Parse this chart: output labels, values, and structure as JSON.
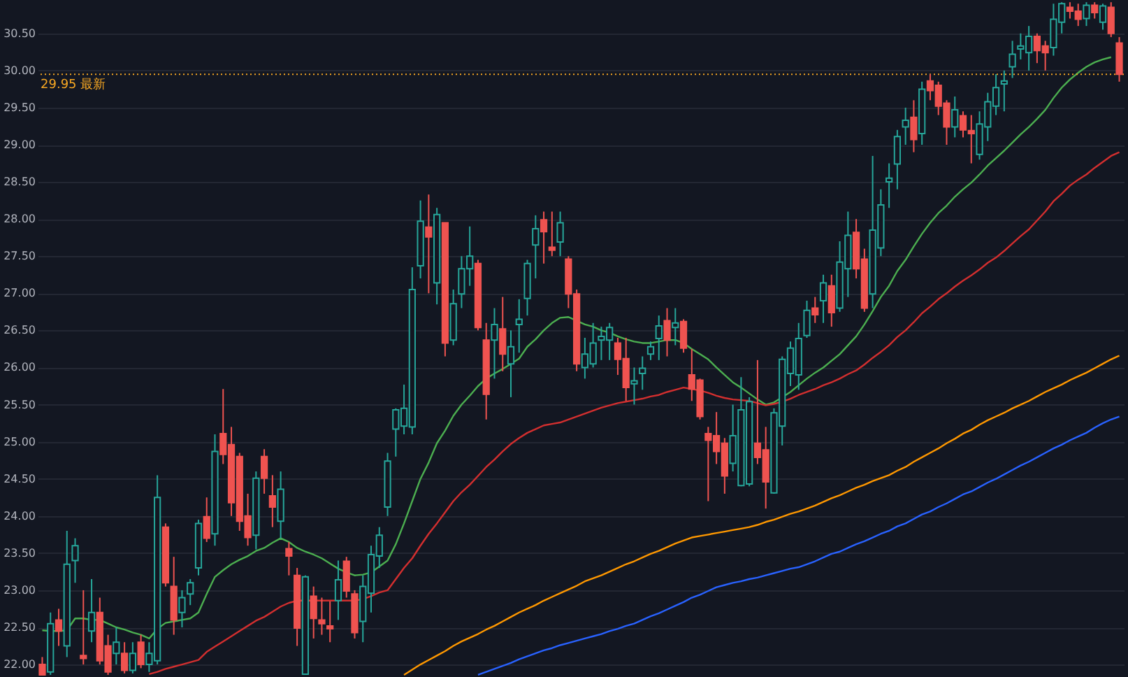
{
  "chart_data": {
    "type": "candlestick",
    "categories": [
      null,
      null,
      null,
      null,
      null,
      null,
      null,
      null,
      null,
      null,
      null,
      null,
      null,
      null,
      null,
      null,
      null,
      null,
      null,
      null,
      null,
      null,
      null,
      null,
      null,
      null,
      null,
      null,
      null,
      null,
      null,
      null,
      null,
      null,
      null,
      null,
      null,
      null,
      null,
      null,
      null,
      null,
      null,
      null,
      null,
      null,
      null,
      null,
      null,
      null,
      null,
      null,
      null,
      null,
      null,
      null,
      null,
      null,
      null,
      null,
      null,
      null,
      null,
      null,
      null,
      null,
      null,
      null,
      null,
      null,
      null,
      null,
      null,
      null,
      null,
      null,
      null,
      null,
      null,
      null,
      null,
      null,
      null,
      null,
      null,
      null,
      null,
      null,
      null,
      null,
      null,
      null,
      null,
      null,
      null,
      null,
      null,
      null,
      null,
      null,
      null,
      null,
      null,
      null,
      null,
      null,
      null,
      null,
      null,
      null,
      null,
      null,
      null,
      null,
      null,
      null,
      null,
      null,
      null,
      null,
      null,
      null,
      null,
      null,
      null,
      null,
      null,
      null,
      null,
      null,
      null,
      null
    ],
    "ohlc": [
      [
        22.0,
        22.1,
        21.85,
        21.86
      ],
      [
        21.9,
        22.7,
        21.86,
        22.55
      ],
      [
        22.6,
        22.75,
        22.25,
        22.45
      ],
      [
        22.25,
        23.8,
        22.1,
        23.35
      ],
      [
        23.4,
        23.7,
        23.1,
        23.6
      ],
      [
        22.12,
        23.0,
        22.0,
        22.08
      ],
      [
        22.45,
        23.15,
        22.3,
        22.7
      ],
      [
        22.7,
        22.9,
        22.0,
        22.05
      ],
      [
        22.25,
        22.4,
        21.86,
        21.9
      ],
      [
        22.15,
        22.5,
        22.0,
        22.3
      ],
      [
        22.15,
        22.3,
        21.88,
        21.92
      ],
      [
        21.92,
        22.3,
        21.88,
        22.15
      ],
      [
        22.3,
        22.4,
        21.95,
        22.0
      ],
      [
        22.0,
        22.3,
        21.9,
        22.15
      ],
      [
        22.05,
        24.55,
        22.0,
        24.25
      ],
      [
        23.85,
        23.9,
        23.05,
        23.1
      ],
      [
        23.05,
        23.45,
        22.4,
        22.6
      ],
      [
        22.7,
        23.0,
        22.5,
        22.9
      ],
      [
        22.95,
        23.15,
        22.8,
        23.1
      ],
      [
        23.3,
        23.95,
        23.2,
        23.9
      ],
      [
        23.99,
        24.25,
        23.65,
        23.7
      ],
      [
        23.76,
        25.1,
        23.6,
        24.87
      ],
      [
        25.11,
        25.71,
        24.7,
        24.83
      ],
      [
        24.96,
        25.2,
        24.0,
        24.18
      ],
      [
        24.8,
        24.85,
        23.8,
        23.93
      ],
      [
        24.0,
        24.3,
        23.6,
        23.71
      ],
      [
        23.74,
        24.6,
        23.55,
        24.51
      ],
      [
        24.8,
        24.9,
        24.3,
        24.51
      ],
      [
        24.27,
        24.55,
        23.85,
        24.12
      ],
      [
        23.93,
        24.6,
        23.7,
        24.36
      ],
      [
        23.56,
        23.65,
        23.2,
        23.46
      ],
      [
        23.2,
        23.3,
        22.25,
        22.49
      ],
      [
        21.87,
        23.2,
        21.86,
        23.18
      ],
      [
        22.92,
        23.05,
        22.35,
        22.62
      ],
      [
        22.6,
        22.9,
        22.4,
        22.55
      ],
      [
        22.52,
        22.85,
        22.3,
        22.48
      ],
      [
        22.86,
        23.4,
        22.6,
        23.14
      ],
      [
        23.39,
        23.45,
        22.9,
        22.99
      ],
      [
        22.95,
        23.0,
        22.35,
        22.43
      ],
      [
        22.58,
        23.2,
        22.3,
        23.05
      ],
      [
        22.96,
        23.6,
        22.7,
        23.48
      ],
      [
        23.46,
        23.85,
        23.3,
        23.74
      ],
      [
        24.12,
        24.85,
        24.0,
        24.74
      ],
      [
        25.17,
        25.45,
        24.8,
        25.43
      ],
      [
        25.21,
        25.77,
        25.1,
        25.45
      ],
      [
        25.2,
        27.35,
        25.1,
        27.05
      ],
      [
        27.37,
        28.25,
        27.2,
        27.97
      ],
      [
        27.89,
        28.33,
        27.0,
        27.76
      ],
      [
        27.14,
        28.15,
        26.85,
        28.06
      ],
      [
        27.95,
        27.95,
        26.15,
        26.33
      ],
      [
        26.37,
        27.05,
        26.3,
        26.86
      ],
      [
        26.99,
        27.5,
        26.8,
        27.33
      ],
      [
        27.33,
        27.9,
        27.1,
        27.5
      ],
      [
        27.4,
        27.45,
        26.5,
        26.54
      ],
      [
        26.37,
        26.6,
        25.3,
        25.64
      ],
      [
        26.37,
        26.8,
        25.85,
        26.58
      ],
      [
        26.52,
        26.95,
        25.95,
        26.18
      ],
      [
        26.05,
        26.5,
        25.6,
        26.28
      ],
      [
        26.58,
        26.92,
        26.2,
        26.65
      ],
      [
        26.93,
        27.45,
        26.7,
        27.4
      ],
      [
        27.65,
        28.05,
        27.2,
        27.87
      ],
      [
        27.99,
        28.1,
        27.4,
        27.83
      ],
      [
        27.62,
        28.1,
        27.5,
        27.58
      ],
      [
        27.69,
        28.1,
        27.5,
        27.95
      ],
      [
        27.46,
        27.5,
        26.8,
        26.99
      ],
      [
        26.99,
        27.05,
        25.95,
        26.05
      ],
      [
        26.0,
        26.4,
        25.85,
        26.18
      ],
      [
        26.05,
        26.6,
        26.0,
        26.33
      ],
      [
        26.37,
        26.55,
        26.1,
        26.42
      ],
      [
        26.37,
        26.6,
        26.1,
        26.54
      ],
      [
        26.33,
        26.4,
        25.9,
        26.11
      ],
      [
        26.12,
        26.4,
        25.55,
        25.73
      ],
      [
        25.78,
        26.0,
        25.5,
        25.82
      ],
      [
        25.92,
        26.15,
        25.7,
        25.99
      ],
      [
        26.18,
        26.35,
        26.1,
        26.28
      ],
      [
        26.39,
        26.7,
        26.1,
        26.56
      ],
      [
        26.63,
        26.8,
        26.15,
        26.37
      ],
      [
        26.54,
        26.8,
        26.3,
        26.6
      ],
      [
        26.62,
        26.65,
        26.2,
        26.26
      ],
      [
        25.9,
        26.25,
        25.55,
        25.71
      ],
      [
        25.83,
        25.85,
        25.3,
        25.34
      ],
      [
        25.11,
        25.2,
        24.2,
        25.02
      ],
      [
        25.08,
        25.4,
        24.7,
        24.87
      ],
      [
        24.98,
        25.05,
        24.3,
        24.54
      ],
      [
        24.71,
        25.5,
        24.6,
        25.08
      ],
      [
        24.41,
        25.87,
        24.4,
        25.43
      ],
      [
        24.43,
        25.6,
        24.4,
        25.54
      ],
      [
        24.98,
        26.1,
        24.7,
        24.79
      ],
      [
        24.89,
        25.2,
        24.1,
        24.46
      ],
      [
        24.31,
        25.45,
        24.3,
        25.39
      ],
      [
        25.21,
        26.15,
        24.95,
        26.11
      ],
      [
        25.92,
        26.35,
        25.75,
        26.26
      ],
      [
        25.9,
        26.6,
        25.7,
        26.39
      ],
      [
        26.43,
        26.9,
        26.4,
        26.77
      ],
      [
        26.8,
        26.95,
        26.6,
        26.71
      ],
      [
        26.9,
        27.25,
        26.6,
        27.14
      ],
      [
        27.1,
        27.25,
        26.55,
        26.74
      ],
      [
        26.8,
        27.7,
        26.75,
        27.42
      ],
      [
        27.33,
        28.1,
        26.95,
        27.78
      ],
      [
        27.82,
        28.0,
        27.2,
        27.33
      ],
      [
        27.46,
        27.6,
        26.75,
        26.8
      ],
      [
        26.99,
        28.85,
        26.8,
        27.85
      ],
      [
        27.61,
        28.4,
        27.5,
        28.19
      ],
      [
        28.5,
        28.75,
        28.15,
        28.55
      ],
      [
        28.74,
        29.2,
        28.4,
        29.11
      ],
      [
        29.24,
        29.5,
        29.0,
        29.33
      ],
      [
        29.37,
        29.6,
        28.9,
        29.07
      ],
      [
        29.15,
        29.85,
        29.0,
        29.75
      ],
      [
        29.86,
        29.95,
        29.6,
        29.73
      ],
      [
        29.8,
        29.85,
        29.4,
        29.52
      ],
      [
        29.56,
        29.6,
        29.0,
        29.24
      ],
      [
        29.24,
        29.65,
        29.1,
        29.47
      ],
      [
        29.39,
        29.45,
        29.1,
        29.2
      ],
      [
        29.19,
        29.4,
        28.75,
        29.15
      ],
      [
        28.87,
        29.45,
        28.8,
        29.28
      ],
      [
        29.24,
        29.7,
        29.05,
        29.58
      ],
      [
        29.52,
        29.95,
        29.4,
        29.77
      ],
      [
        29.82,
        30.0,
        29.45,
        29.86
      ],
      [
        30.05,
        30.4,
        29.9,
        30.22
      ],
      [
        30.29,
        30.5,
        30.15,
        30.33
      ],
      [
        30.24,
        30.6,
        30.0,
        30.46
      ],
      [
        30.46,
        30.5,
        30.1,
        30.27
      ],
      [
        30.33,
        30.4,
        30.0,
        30.24
      ],
      [
        30.31,
        30.9,
        30.2,
        30.69
      ],
      [
        30.65,
        30.92,
        30.5,
        30.9
      ],
      [
        30.85,
        30.92,
        30.7,
        30.8
      ],
      [
        30.8,
        30.9,
        30.6,
        30.69
      ],
      [
        30.7,
        30.92,
        30.6,
        30.88
      ],
      [
        30.88,
        30.92,
        30.7,
        30.78
      ],
      [
        30.65,
        30.9,
        30.55,
        30.87
      ],
      [
        30.85,
        30.92,
        30.45,
        30.5
      ],
      [
        30.37,
        30.45,
        29.85,
        29.95
      ]
    ],
    "colors": [
      "#ef5350",
      "#26a69a",
      "#ef5350",
      "#26a69a",
      "#26a69a",
      "#ef5350",
      "#26a69a",
      "#ef5350",
      "#ef5350",
      "#26a69a",
      "#ef5350",
      "#26a69a",
      "#ef5350",
      "#26a69a",
      "#26a69a",
      "#ef5350",
      "#ef5350",
      "#26a69a",
      "#26a69a",
      "#26a69a",
      "#ef5350",
      "#26a69a",
      "#ef5350",
      "#ef5350",
      "#ef5350",
      "#ef5350",
      "#26a69a",
      "#ef5350",
      "#ef5350",
      "#26a69a",
      "#ef5350",
      "#ef5350",
      "#26a69a",
      "#ef5350",
      "#ef5350",
      "#ef5350",
      "#26a69a",
      "#ef5350",
      "#ef5350",
      "#26a69a",
      "#26a69a",
      "#26a69a",
      "#26a69a",
      "#26a69a",
      "#26a69a",
      "#26a69a",
      "#26a69a",
      "#ef5350",
      "#26a69a",
      "#ef5350",
      "#26a69a",
      "#26a69a",
      "#26a69a",
      "#ef5350",
      "#ef5350",
      "#26a69a",
      "#ef5350",
      "#26a69a",
      "#26a69a",
      "#26a69a",
      "#26a69a",
      "#ef5350",
      "#ef5350",
      "#26a69a",
      "#ef5350",
      "#ef5350",
      "#26a69a",
      "#26a69a",
      "#26a69a",
      "#26a69a",
      "#ef5350",
      "#ef5350",
      "#26a69a",
      "#26a69a",
      "#26a69a",
      "#26a69a",
      "#ef5350",
      "#26a69a",
      "#ef5350",
      "#ef5350",
      "#ef5350",
      "#ef5350",
      "#ef5350",
      "#ef5350",
      "#26a69a",
      "#26a69a",
      "#26a69a",
      "#ef5350",
      "#ef5350",
      "#26a69a",
      "#26a69a",
      "#26a69a",
      "#26a69a",
      "#26a69a",
      "#ef5350",
      "#26a69a",
      "#ef5350",
      "#26a69a",
      "#26a69a",
      "#ef5350",
      "#ef5350",
      "#26a69a",
      "#26a69a",
      "#26a69a",
      "#26a69a",
      "#26a69a",
      "#ef5350",
      "#26a69a",
      "#ef5350",
      "#ef5350",
      "#ef5350",
      "#26a69a",
      "#ef5350",
      "#ef5350",
      "#26a69a",
      "#26a69a",
      "#26a69a",
      "#26a69a",
      "#26a69a",
      "#26a69a",
      "#26a69a",
      "#ef5350",
      "#ef5350",
      "#26a69a",
      "#26a69a",
      "#ef5350",
      "#ef5350",
      "#26a69a",
      "#ef5350",
      "#26a69a",
      "#ef5350",
      "#ef5350"
    ],
    "series": [
      {
        "type": "line",
        "color": "#4caf50",
        "values": [
          22.46,
          22.45,
          22.45,
          22.46,
          22.62,
          22.62,
          22.6,
          22.6,
          22.55,
          22.5,
          22.47,
          22.43,
          22.4,
          22.35,
          22.48,
          22.56,
          22.58,
          22.6,
          22.62,
          22.7,
          22.95,
          23.18,
          23.27,
          23.35,
          23.41,
          23.46,
          23.53,
          23.57,
          23.64,
          23.7,
          23.65,
          23.57,
          23.52,
          23.48,
          23.43,
          23.36,
          23.29,
          23.24,
          23.2,
          23.21,
          23.24,
          23.32,
          23.4,
          23.62,
          23.9,
          24.2,
          24.5,
          24.72,
          24.98,
          25.15,
          25.35,
          25.5,
          25.62,
          25.75,
          25.85,
          25.92,
          25.98,
          26.05,
          26.12,
          26.28,
          26.38,
          26.5,
          26.6,
          26.67,
          26.68,
          26.63,
          26.58,
          26.55,
          26.5,
          26.47,
          26.42,
          26.38,
          26.35,
          26.33,
          26.33,
          26.35,
          26.37,
          26.37,
          26.33,
          26.25,
          26.18,
          26.11,
          26.0,
          25.9,
          25.8,
          25.73,
          25.65,
          25.57,
          25.5,
          25.53,
          25.6,
          25.67,
          25.76,
          25.85,
          25.93,
          26.0,
          26.09,
          26.18,
          26.3,
          26.42,
          26.58,
          26.76,
          26.95,
          27.1,
          27.3,
          27.45,
          27.63,
          27.8,
          27.95,
          28.08,
          28.18,
          28.3,
          28.4,
          28.49,
          28.6,
          28.72,
          28.82,
          28.92,
          29.03,
          29.14,
          29.24,
          29.35,
          29.47,
          29.63,
          29.77,
          29.88,
          29.97,
          30.05,
          30.11,
          30.15,
          30.18,
          null
        ]
      },
      {
        "type": "line",
        "color": "#d32f2f",
        "values": [
          null,
          null,
          null,
          null,
          null,
          null,
          null,
          null,
          null,
          null,
          null,
          null,
          null,
          21.87,
          21.9,
          21.94,
          21.97,
          22.0,
          22.03,
          22.06,
          22.17,
          22.24,
          22.31,
          22.38,
          22.45,
          22.52,
          22.59,
          22.64,
          22.71,
          22.78,
          22.83,
          22.86,
          22.86,
          22.86,
          22.86,
          22.86,
          22.86,
          22.86,
          22.86,
          22.88,
          22.92,
          22.97,
          23.0,
          23.15,
          23.3,
          23.43,
          23.6,
          23.76,
          23.9,
          24.05,
          24.2,
          24.32,
          24.42,
          24.54,
          24.66,
          24.76,
          24.87,
          24.97,
          25.05,
          25.12,
          25.17,
          25.22,
          25.24,
          25.26,
          25.3,
          25.34,
          25.38,
          25.42,
          25.46,
          25.49,
          25.52,
          25.54,
          25.56,
          25.58,
          25.61,
          25.63,
          25.67,
          25.7,
          25.73,
          25.71,
          25.69,
          25.66,
          25.62,
          25.59,
          25.57,
          25.56,
          25.55,
          25.52,
          25.49,
          25.51,
          25.54,
          25.58,
          25.63,
          25.67,
          25.71,
          25.76,
          25.8,
          25.85,
          25.91,
          25.96,
          26.04,
          26.13,
          26.21,
          26.3,
          26.41,
          26.5,
          26.61,
          26.73,
          26.82,
          26.92,
          27.0,
          27.09,
          27.17,
          27.24,
          27.32,
          27.41,
          27.48,
          27.57,
          27.67,
          27.77,
          27.86,
          27.98,
          28.1,
          28.24,
          28.34,
          28.45,
          28.53,
          28.6,
          28.69,
          28.77,
          28.85,
          28.9
        ]
      },
      {
        "type": "line",
        "color": "#ff9800",
        "values": [
          null,
          null,
          null,
          null,
          null,
          null,
          null,
          null,
          null,
          null,
          null,
          null,
          null,
          null,
          null,
          null,
          null,
          null,
          null,
          null,
          null,
          null,
          null,
          null,
          null,
          null,
          null,
          null,
          null,
          null,
          null,
          null,
          null,
          null,
          null,
          null,
          null,
          null,
          null,
          null,
          null,
          null,
          null,
          null,
          21.86,
          21.93,
          22.0,
          22.06,
          22.12,
          22.18,
          22.25,
          22.31,
          22.36,
          22.41,
          22.47,
          22.52,
          22.58,
          22.64,
          22.7,
          22.75,
          22.8,
          22.86,
          22.91,
          22.96,
          23.01,
          23.06,
          23.12,
          23.16,
          23.2,
          23.25,
          23.3,
          23.35,
          23.39,
          23.44,
          23.49,
          23.53,
          23.58,
          23.63,
          23.67,
          23.71,
          23.73,
          23.75,
          23.77,
          23.79,
          23.81,
          23.83,
          23.85,
          23.88,
          23.92,
          23.95,
          23.99,
          24.03,
          24.06,
          24.1,
          24.14,
          24.19,
          24.24,
          24.28,
          24.33,
          24.38,
          24.42,
          24.47,
          24.51,
          24.55,
          24.61,
          24.66,
          24.73,
          24.79,
          24.85,
          24.91,
          24.98,
          25.04,
          25.11,
          25.16,
          25.23,
          25.29,
          25.34,
          25.39,
          25.45,
          25.5,
          25.55,
          25.61,
          25.67,
          25.72,
          25.77,
          25.83,
          25.88,
          25.93,
          25.99,
          26.05,
          26.11,
          26.16
        ]
      },
      {
        "type": "line",
        "color": "#2962ff",
        "values": [
          null,
          null,
          null,
          null,
          null,
          null,
          null,
          null,
          null,
          null,
          null,
          null,
          null,
          null,
          null,
          null,
          null,
          null,
          null,
          null,
          null,
          null,
          null,
          null,
          null,
          null,
          null,
          null,
          null,
          null,
          null,
          null,
          null,
          null,
          null,
          null,
          null,
          null,
          null,
          null,
          null,
          null,
          null,
          null,
          null,
          null,
          null,
          null,
          null,
          null,
          null,
          null,
          null,
          21.86,
          21.9,
          21.94,
          21.98,
          22.02,
          22.07,
          22.11,
          22.15,
          22.19,
          22.22,
          22.26,
          22.29,
          22.32,
          22.35,
          22.38,
          22.41,
          22.45,
          22.48,
          22.52,
          22.55,
          22.6,
          22.65,
          22.69,
          22.74,
          22.79,
          22.84,
          22.9,
          22.94,
          22.99,
          23.04,
          23.07,
          23.1,
          23.12,
          23.15,
          23.17,
          23.2,
          23.23,
          23.26,
          23.29,
          23.31,
          23.35,
          23.39,
          23.44,
          23.49,
          23.52,
          23.57,
          23.62,
          23.66,
          23.71,
          23.76,
          23.8,
          23.86,
          23.9,
          23.96,
          24.02,
          24.06,
          24.12,
          24.17,
          24.23,
          24.29,
          24.33,
          24.39,
          24.45,
          24.5,
          24.56,
          24.62,
          24.68,
          24.73,
          24.79,
          24.85,
          24.91,
          24.96,
          25.02,
          25.07,
          25.12,
          25.19,
          25.25,
          25.3,
          25.34
        ]
      }
    ],
    "ylim": [
      21.85,
      30.95
    ],
    "yticks": [
      {
        "value": 22,
        "label": "22.00"
      },
      {
        "value": 22.5,
        "label": "22.50"
      },
      {
        "value": 23,
        "label": "23.00"
      },
      {
        "value": 23.5,
        "label": "23.50"
      },
      {
        "value": 24,
        "label": "24.00"
      },
      {
        "value": 24.5,
        "label": "24.50"
      },
      {
        "value": 25,
        "label": "25.00"
      },
      {
        "value": 25.5,
        "label": "25.50"
      },
      {
        "value": 26,
        "label": "26.00"
      },
      {
        "value": 26.5,
        "label": "26.50"
      },
      {
        "value": 27,
        "label": "27.00"
      },
      {
        "value": 27.5,
        "label": "27.50"
      },
      {
        "value": 28,
        "label": "28.00"
      },
      {
        "value": 28.5,
        "label": "28.50"
      },
      {
        "value": 29,
        "label": "29.00"
      },
      {
        "value": 29.5,
        "label": "29.50"
      },
      {
        "value": 30,
        "label": "30.00"
      },
      {
        "value": 30.5,
        "label": "30.50"
      }
    ],
    "ref_lines": [
      {
        "axis": "y",
        "value": 29.95,
        "label": "29.95 最新",
        "color": "#f5a623",
        "line_style": "dotted"
      }
    ],
    "grid": "y",
    "tick_labels": "y"
  }
}
